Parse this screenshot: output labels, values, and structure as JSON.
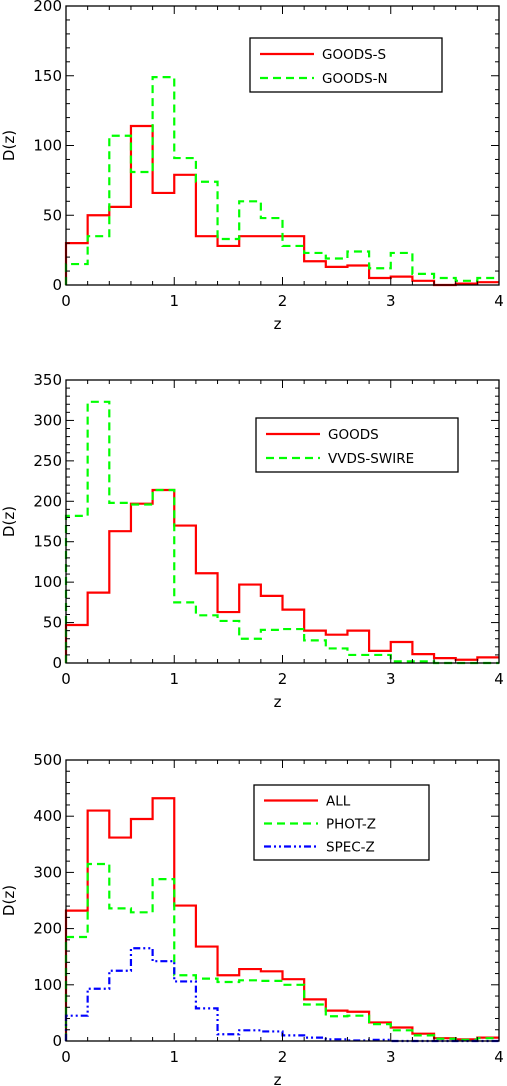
{
  "chart_data": [
    {
      "type": "line",
      "step": true,
      "xlabel": "z",
      "ylabel": "D(z)",
      "xlim": [
        0,
        4
      ],
      "ylim": [
        0,
        200
      ],
      "xticks": [
        0,
        1,
        2,
        3,
        4
      ],
      "yticks": [
        0,
        50,
        100,
        150,
        200
      ],
      "legend_position": "top-right",
      "x_edges": [
        0,
        0.2,
        0.4,
        0.6,
        0.8,
        1.0,
        1.2,
        1.4,
        1.6,
        1.8,
        2.0,
        2.2,
        2.4,
        2.6,
        2.8,
        3.0,
        3.2,
        3.4,
        3.6,
        3.8,
        4.0
      ],
      "series": [
        {
          "name": "GOODS-S",
          "color": "#ff0000",
          "dash": "solid",
          "values": [
            30,
            50,
            56,
            114,
            66,
            79,
            35,
            28,
            35,
            35,
            35,
            17,
            13,
            14,
            5,
            6,
            3,
            0,
            1,
            2
          ]
        },
        {
          "name": "GOODS-N",
          "color": "#00ff00",
          "dash": "dashed",
          "values": [
            15,
            35,
            107,
            81,
            149,
            91,
            74,
            33,
            60,
            48,
            28,
            23,
            19,
            24,
            12,
            23,
            8,
            5,
            3,
            5
          ]
        }
      ]
    },
    {
      "type": "line",
      "step": true,
      "xlabel": "z",
      "ylabel": "D(z)",
      "xlim": [
        0,
        4
      ],
      "ylim": [
        0,
        350
      ],
      "xticks": [
        0,
        1,
        2,
        3,
        4
      ],
      "yticks": [
        0,
        50,
        100,
        150,
        200,
        250,
        300,
        350
      ],
      "legend_position": "top-right",
      "x_edges": [
        0,
        0.2,
        0.4,
        0.6,
        0.8,
        1.0,
        1.2,
        1.4,
        1.6,
        1.8,
        2.0,
        2.2,
        2.4,
        2.6,
        2.8,
        3.0,
        3.2,
        3.4,
        3.6,
        3.8,
        4.0
      ],
      "series": [
        {
          "name": "GOODS",
          "color": "#ff0000",
          "dash": "solid",
          "values": [
            47,
            87,
            163,
            197,
            214,
            170,
            111,
            63,
            97,
            83,
            66,
            40,
            35,
            40,
            15,
            26,
            11,
            6,
            4,
            7
          ]
        },
        {
          "name": "VVDS-SWIRE",
          "color": "#00ff00",
          "dash": "dashed",
          "values": [
            182,
            323,
            198,
            196,
            214,
            75,
            59,
            52,
            30,
            41,
            42,
            28,
            18,
            10,
            10,
            2,
            2,
            0,
            0,
            0
          ]
        }
      ]
    },
    {
      "type": "line",
      "step": true,
      "xlabel": "z",
      "ylabel": "D(z)",
      "xlim": [
        0,
        4
      ],
      "ylim": [
        0,
        500
      ],
      "xticks": [
        0,
        1,
        2,
        3,
        4
      ],
      "yticks": [
        0,
        100,
        200,
        300,
        400,
        500
      ],
      "legend_position": "top-right",
      "x_edges": [
        0,
        0.2,
        0.4,
        0.6,
        0.8,
        1.0,
        1.2,
        1.4,
        1.6,
        1.8,
        2.0,
        2.2,
        2.4,
        2.6,
        2.8,
        3.0,
        3.2,
        3.4,
        3.6,
        3.8,
        4.0
      ],
      "series": [
        {
          "name": "ALL",
          "color": "#ff0000",
          "dash": "solid",
          "values": [
            232,
            410,
            362,
            395,
            432,
            241,
            168,
            117,
            128,
            124,
            110,
            74,
            54,
            52,
            33,
            24,
            13,
            5,
            3,
            6
          ]
        },
        {
          "name": "PHOT-Z",
          "color": "#00ff00",
          "dash": "dashed",
          "values": [
            185,
            315,
            236,
            229,
            288,
            117,
            111,
            105,
            108,
            107,
            100,
            65,
            44,
            45,
            30,
            19,
            10,
            4,
            2,
            5
          ]
        },
        {
          "name": "SPEC-Z",
          "color": "#0000ff",
          "dash": "dashdotdot",
          "values": [
            45,
            93,
            125,
            165,
            142,
            106,
            58,
            12,
            19,
            17,
            10,
            6,
            3,
            1,
            2,
            0,
            0,
            0,
            0,
            0
          ]
        }
      ]
    }
  ]
}
